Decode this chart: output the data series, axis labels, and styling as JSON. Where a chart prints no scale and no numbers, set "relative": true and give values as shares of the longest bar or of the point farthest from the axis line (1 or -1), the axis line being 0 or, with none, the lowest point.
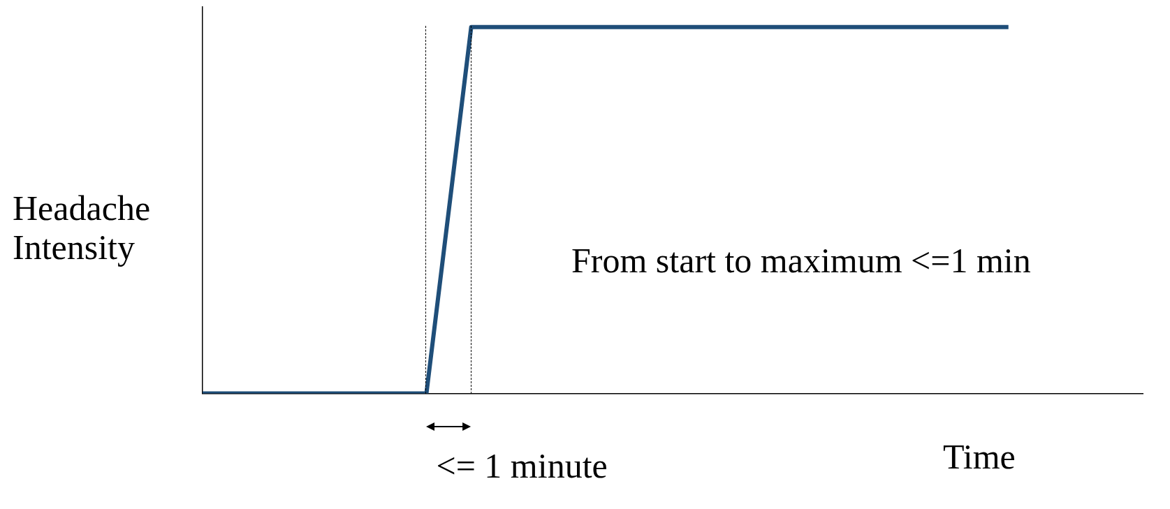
{
  "chart_data": {
    "type": "line",
    "relative": true,
    "xlabel": "Time",
    "ylabel": "Headache Intensity",
    "categories": [
      null,
      null,
      null,
      null,
      null,
      null,
      null,
      null,
      null,
      null,
      null,
      null,
      null,
      null,
      null,
      null,
      null,
      null,
      null,
      null,
      null,
      null
    ],
    "series": [
      {
        "color": "#1f4e79",
        "values": [
          0,
          0,
          0,
          0,
          0,
          0,
          1,
          1,
          1,
          1,
          1,
          1,
          1,
          1,
          1,
          1,
          1,
          1,
          1,
          null,
          null,
          null
        ]
      }
    ],
    "annotations": [
      "From start to maximum <=1 min",
      "<= 1 minute"
    ],
    "legend": false,
    "marker": "none",
    "line_style": "solid",
    "grid": false
  }
}
